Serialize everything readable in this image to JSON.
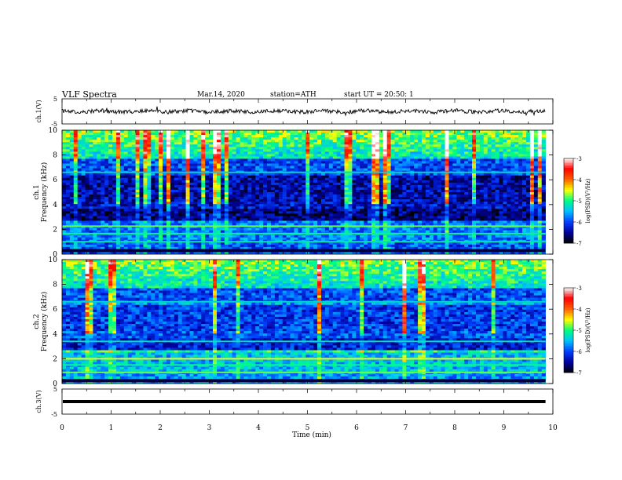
{
  "header": {
    "title": "VLF Spectra",
    "date": "Mar.14, 2020",
    "station": "station=ATH",
    "start": "start UT = 20:50: 1"
  },
  "colors": {
    "colormap": [
      "#000000",
      "#0000a0",
      "#0040ff",
      "#00c0ff",
      "#00ff80",
      "#ffff00",
      "#ff6000",
      "#ff0000",
      "#ffffff"
    ]
  },
  "chart_data": {
    "type": "heatmap",
    "x_axis": {
      "label": "Time (min)",
      "range": [
        0,
        10
      ],
      "ticks": [
        "0",
        "1",
        "2",
        "3",
        "4",
        "5",
        "6",
        "7",
        "8",
        "9",
        "10"
      ]
    },
    "panels": [
      {
        "id": "ch1-waveform",
        "ylabel": "ch.1(V)",
        "ylim": [
          -5,
          5
        ],
        "yticks": [
          "5",
          "-5"
        ],
        "trace_level": 0
      },
      {
        "id": "ch1-spectrogram",
        "ylabel": "ch.1",
        "ylabel2": "Frequency (kHz)",
        "ylim": [
          0,
          10
        ],
        "yticks": [
          "0",
          "2",
          "4",
          "6",
          "8",
          "10"
        ],
        "colorbar": {
          "label": "log(PSD)(V²/Hz)",
          "range": [
            -7,
            -3
          ],
          "ticks": [
            "-3",
            "-4",
            "-5",
            "-6",
            "-7"
          ]
        }
      },
      {
        "id": "ch2-spectrogram",
        "ylabel": "ch.2",
        "ylabel2": "Frequency (kHz)",
        "ylim": [
          0,
          10
        ],
        "yticks": [
          "0",
          "2",
          "4",
          "6",
          "8",
          "10"
        ],
        "colorbar": {
          "label": "log(PSD)(V²/Hz)",
          "range": [
            -7,
            -3
          ],
          "ticks": [
            "-3",
            "-4",
            "-5",
            "-6",
            "-7"
          ]
        }
      },
      {
        "id": "ch3-waveform",
        "ylabel": "ch.3(V)",
        "ylim": [
          -5,
          5
        ],
        "yticks": [
          "5",
          "-5"
        ],
        "trace_level": 0
      }
    ]
  }
}
